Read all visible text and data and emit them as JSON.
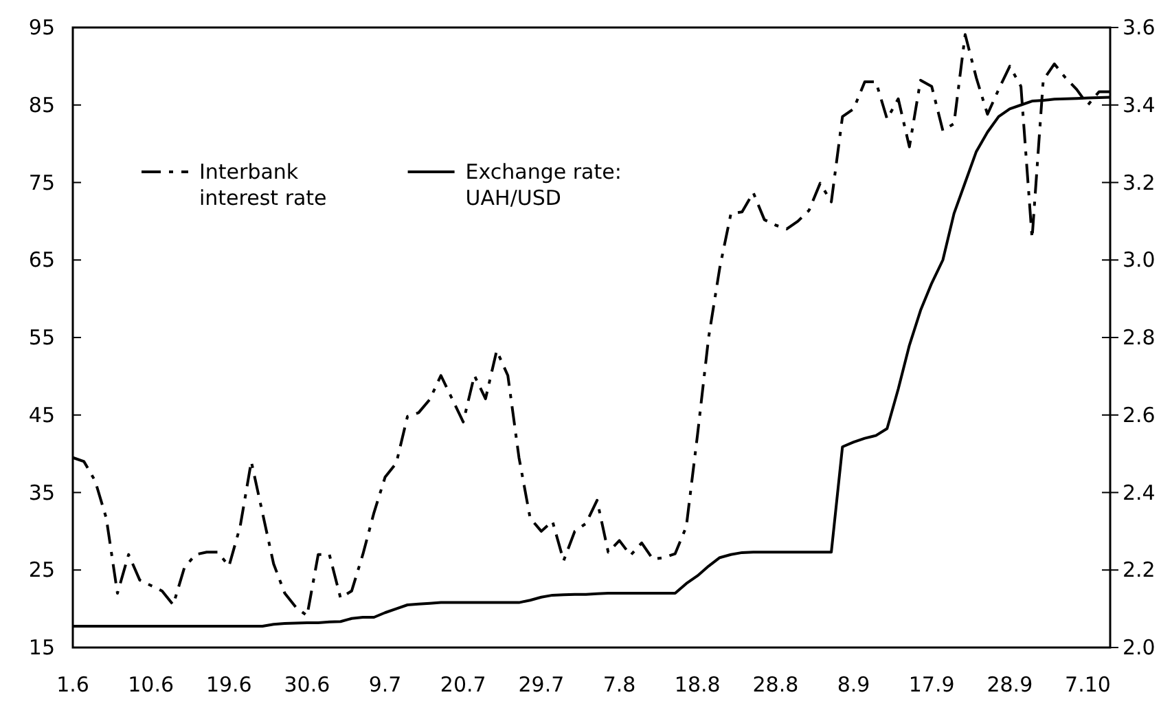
{
  "chart_data": {
    "type": "line",
    "categories": [
      "1.6",
      null,
      null,
      null,
      null,
      null,
      null,
      "10.6",
      null,
      null,
      null,
      null,
      null,
      null,
      "19.6",
      null,
      null,
      null,
      null,
      null,
      null,
      "30.6",
      null,
      null,
      null,
      null,
      null,
      null,
      "9.7",
      null,
      null,
      null,
      null,
      null,
      null,
      "20.7",
      null,
      null,
      null,
      null,
      null,
      null,
      "29.7",
      null,
      null,
      null,
      null,
      null,
      null,
      "7.8",
      null,
      null,
      null,
      null,
      null,
      null,
      "18.8",
      null,
      null,
      null,
      null,
      null,
      null,
      "28.8",
      null,
      null,
      null,
      null,
      null,
      null,
      "8.9",
      null,
      null,
      null,
      null,
      null,
      null,
      "17.9",
      null,
      null,
      null,
      null,
      null,
      null,
      "28.9",
      null,
      null,
      null,
      null,
      null,
      null,
      "7.10",
      null,
      null
    ],
    "ylim": [
      15,
      95
    ],
    "yticks": [
      15,
      25,
      35,
      45,
      55,
      65,
      75,
      85,
      95
    ],
    "y2lim": [
      2.0,
      3.6
    ],
    "y2ticks": [
      {
        "value": 2.0,
        "label": "2.0"
      },
      {
        "value": 2.2,
        "label": "2.2"
      },
      {
        "value": 2.4,
        "label": "2.4"
      },
      {
        "value": 2.6,
        "label": "2.6"
      },
      {
        "value": 2.8,
        "label": "2.8"
      },
      {
        "value": 3.0,
        "label": "3.0"
      },
      {
        "value": 3.2,
        "label": "3.2"
      },
      {
        "value": 3.4,
        "label": "3.4"
      },
      {
        "value": 3.6,
        "label": "3.6"
      }
    ],
    "grid": false,
    "legend": "top left",
    "marker": "none",
    "series": [
      {
        "name": "Interbank interest rate",
        "color": "#000000",
        "line_style": "dashed",
        "values": [
          39.5,
          39,
          36.5,
          31.7,
          22,
          27,
          23.7,
          23,
          22.3,
          20.5,
          25.3,
          27,
          27.3,
          27.3,
          25.5,
          30.6,
          39,
          32.4,
          25.8,
          22,
          20.2,
          19.1,
          27,
          27,
          21.4,
          22.3,
          27,
          32.4,
          37,
          38.8,
          44.8,
          45.3,
          47,
          50.1,
          47.1,
          44.1,
          50.1,
          47.1,
          53.3,
          50.1,
          39.5,
          31.7,
          30,
          31.3,
          26.2,
          30,
          31,
          34,
          27.3,
          28.8,
          26.9,
          28.5,
          26.4,
          26.6,
          27.1,
          30.6,
          42.4,
          55,
          64,
          71,
          71.2,
          73.7,
          70.2,
          69.5,
          69,
          70,
          71.4,
          74.9,
          72.5,
          83.5,
          84.5,
          88,
          88,
          83.2,
          85.8,
          79.6,
          88.2,
          87.4,
          81.7,
          82.6,
          94.1,
          88.5,
          83.8,
          87,
          90,
          87.4,
          67.8,
          88.2,
          90.3,
          88.5,
          87,
          85,
          86.7,
          86.7
        ]
      },
      {
        "name": "Exchange rate: UAH/USD",
        "color": "#000000",
        "line_style": "solid",
        "axis": "y2",
        "values": [
          2.055,
          2.055,
          2.055,
          2.055,
          2.055,
          2.055,
          2.055,
          2.055,
          2.055,
          2.055,
          2.055,
          2.055,
          2.055,
          2.055,
          2.055,
          2.055,
          2.055,
          2.055,
          2.06,
          2.062,
          2.063,
          2.064,
          2.064,
          2.066,
          2.067,
          2.075,
          2.078,
          2.078,
          2.09,
          2.1,
          2.11,
          2.112,
          2.114,
          2.116,
          2.116,
          2.116,
          2.116,
          2.116,
          2.116,
          2.116,
          2.116,
          2.122,
          2.13,
          2.135,
          2.136,
          2.137,
          2.137,
          2.139,
          2.14,
          2.14,
          2.14,
          2.14,
          2.14,
          2.14,
          2.14,
          2.165,
          2.185,
          2.21,
          2.232,
          2.24,
          2.245,
          2.246,
          2.246,
          2.246,
          2.246,
          2.246,
          2.246,
          2.246,
          2.246,
          2.518,
          2.53,
          2.54,
          2.547,
          2.565,
          2.667,
          2.78,
          2.87,
          2.94,
          3.0,
          3.12,
          3.2,
          3.28,
          3.33,
          3.37,
          3.39,
          3.4,
          3.41,
          3.412,
          3.415,
          3.416,
          3.417,
          3.418,
          3.419,
          3.42
        ]
      }
    ]
  }
}
